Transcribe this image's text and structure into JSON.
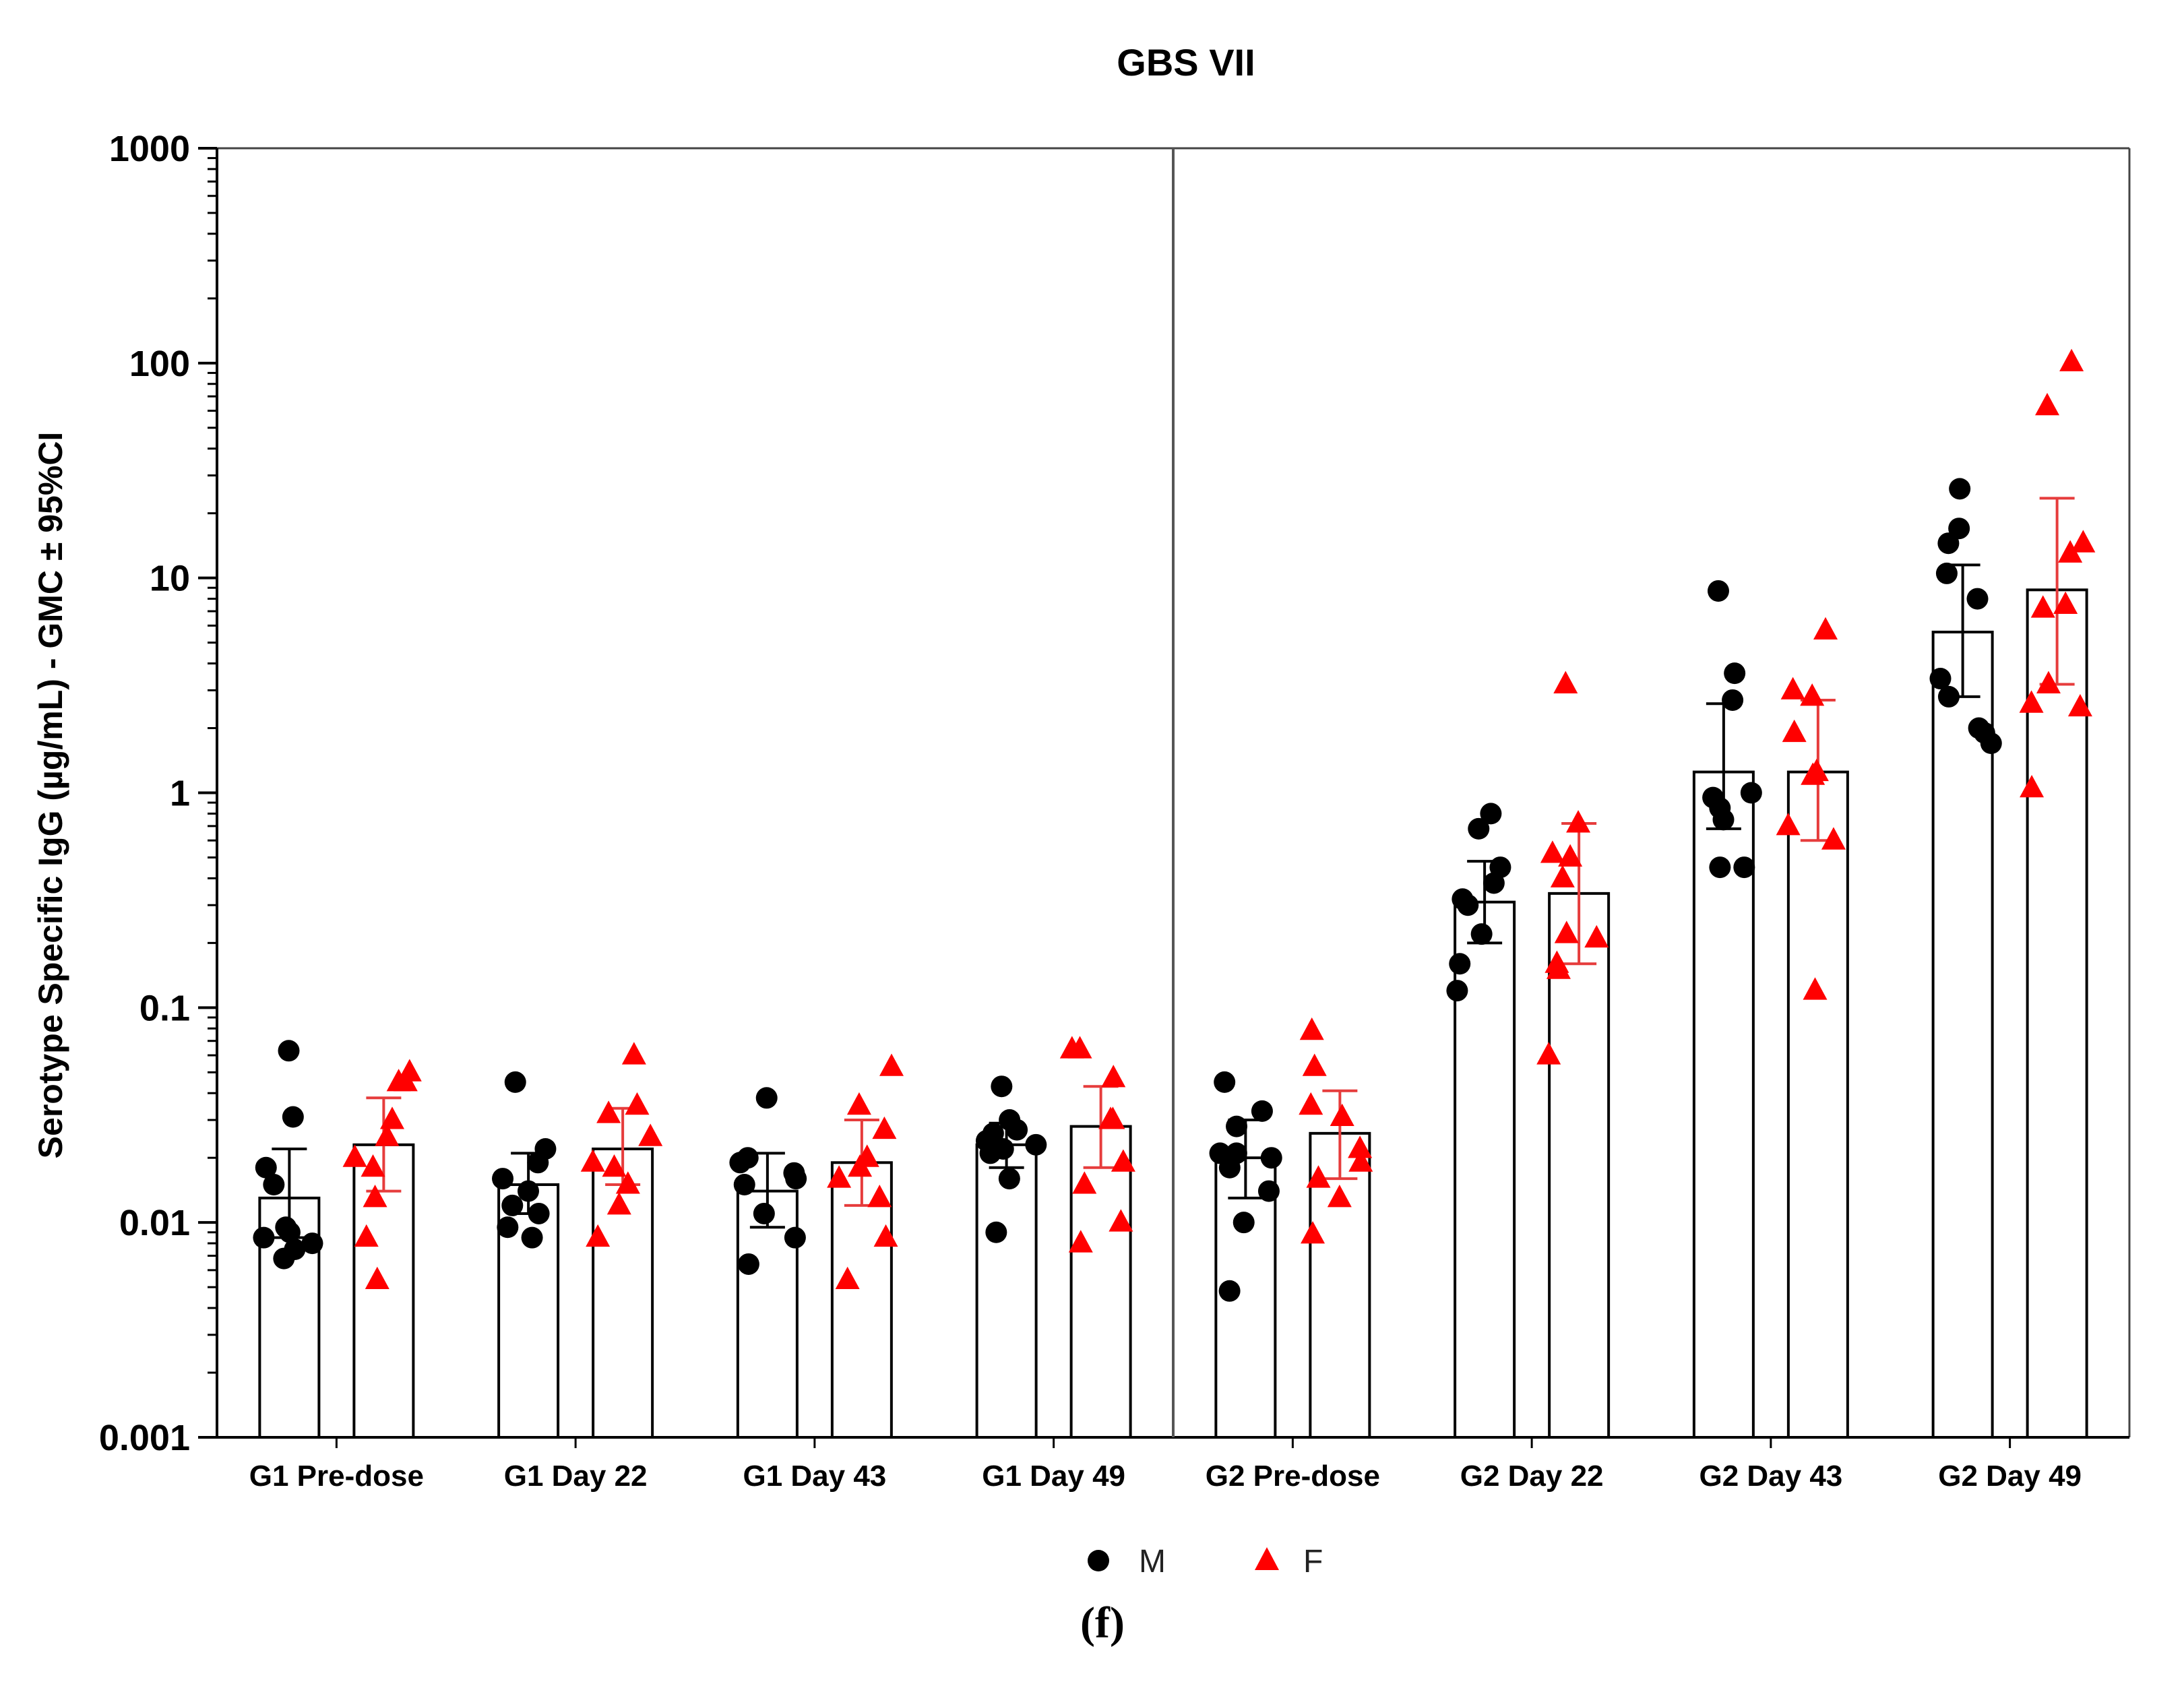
{
  "chart_data": {
    "type": "bar",
    "title": "GBS VII",
    "ylabel": "Serotype Specific IgG (µg/mL) - GMC ± 95%CI",
    "xlabel": "",
    "yscale": "log",
    "ylim": [
      0.001,
      1000
    ],
    "yticks": [
      "0.001",
      "0.01",
      "0.1",
      "1",
      "10",
      "100",
      "1000"
    ],
    "panel_label": "(f)",
    "legend": [
      {
        "name": "M",
        "marker": "circle",
        "color": "#000000"
      },
      {
        "name": "F",
        "marker": "triangle",
        "color": "#ff0000"
      }
    ],
    "categories": [
      "G1 Pre-dose",
      "G1 Day 22",
      "G1 Day 43",
      "G1 Day 49",
      "G2 Pre-dose",
      "G2 Day 22",
      "G2 Day 43",
      "G2 Day 49"
    ],
    "series": [
      {
        "name": "M",
        "color": "#000000",
        "gmc": [
          0.013,
          0.015,
          0.014,
          0.023,
          0.02,
          0.31,
          1.25,
          5.6
        ],
        "ci_low": [
          0.0085,
          0.011,
          0.0095,
          0.018,
          0.013,
          0.2,
          0.68,
          2.8
        ],
        "ci_high": [
          0.022,
          0.021,
          0.021,
          0.029,
          0.03,
          0.48,
          2.6,
          11.5
        ],
        "points": [
          [
            0.063,
            0.031,
            0.018,
            0.015,
            0.0095,
            0.009,
            0.0085,
            0.008,
            0.0075,
            0.0068
          ],
          [
            0.045,
            0.022,
            0.019,
            0.016,
            0.014,
            0.012,
            0.011,
            0.0095,
            0.0085
          ],
          [
            0.038,
            0.02,
            0.019,
            0.017,
            0.016,
            0.015,
            0.011,
            0.0085,
            0.0064
          ],
          [
            0.043,
            0.03,
            0.027,
            0.026,
            0.024,
            0.023,
            0.022,
            0.021,
            0.016,
            0.009
          ],
          [
            0.045,
            0.033,
            0.028,
            0.021,
            0.021,
            0.02,
            0.018,
            0.014,
            0.01,
            0.0048
          ],
          [
            0.8,
            0.68,
            0.45,
            0.38,
            0.32,
            0.3,
            0.22,
            0.16,
            0.12
          ],
          [
            8.7,
            3.6,
            2.7,
            1.0,
            0.95,
            0.85,
            0.75,
            0.45,
            0.45
          ],
          [
            26,
            17,
            14.5,
            10.5,
            8,
            3.4,
            2.8,
            2.0,
            1.9,
            1.7
          ]
        ]
      },
      {
        "name": "F",
        "color": "#ff0000",
        "gmc": [
          0.023,
          0.022,
          0.019,
          0.028,
          0.026,
          0.34,
          1.25,
          8.8
        ],
        "ci_low": [
          0.014,
          0.015,
          0.012,
          0.018,
          0.016,
          0.16,
          0.6,
          3.2
        ],
        "ci_high": [
          0.038,
          0.034,
          0.03,
          0.043,
          0.041,
          0.72,
          2.7,
          23.5
        ],
        "points": [
          [
            0.05,
            0.045,
            0.045,
            0.03,
            0.025,
            0.02,
            0.018,
            0.013,
            0.0085,
            0.0054
          ],
          [
            0.06,
            0.035,
            0.032,
            0.025,
            0.019,
            0.018,
            0.015,
            0.012,
            0.0085
          ],
          [
            0.053,
            0.035,
            0.027,
            0.02,
            0.018,
            0.016,
            0.013,
            0.0085,
            0.0054
          ],
          [
            0.064,
            0.064,
            0.047,
            0.03,
            0.03,
            0.019,
            0.015,
            0.01,
            0.008
          ],
          [
            0.078,
            0.053,
            0.035,
            0.031,
            0.022,
            0.019,
            0.016,
            0.013,
            0.0088
          ],
          [
            3.2,
            0.72,
            0.52,
            0.5,
            0.4,
            0.22,
            0.21,
            0.16,
            0.15,
            0.06
          ],
          [
            5.7,
            3.0,
            2.8,
            1.9,
            1.25,
            1.2,
            0.7,
            0.6,
            0.12
          ],
          [
            101,
            63,
            14.5,
            13,
            7.5,
            7.2,
            3.2,
            2.6,
            2.5,
            1.05
          ]
        ]
      }
    ]
  }
}
